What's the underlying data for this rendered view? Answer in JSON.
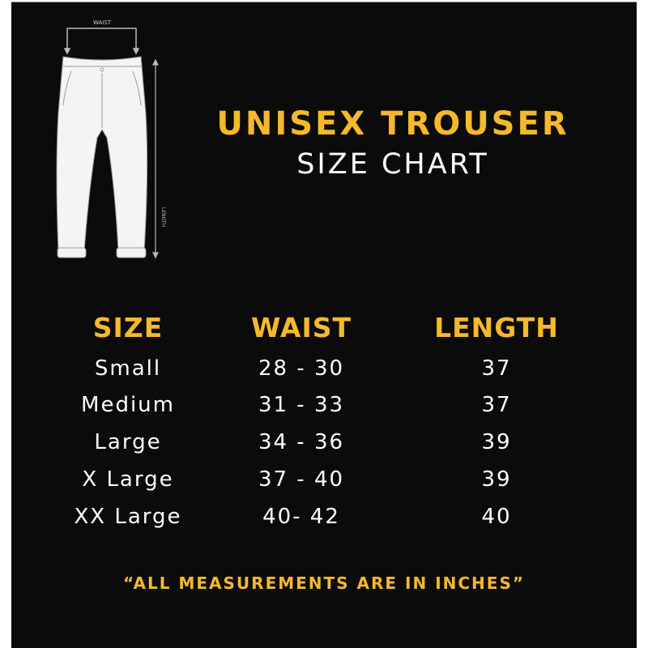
{
  "title": "UNISEX TROUSER",
  "subtitle": "SIZE CHART",
  "diagram": {
    "waist_label": "WAIST",
    "length_label": "LENGTH"
  },
  "colors": {
    "accent": "#f6b92b",
    "background": "#0b0b0b",
    "text": "#ffffff"
  },
  "table": {
    "headers": [
      "SIZE",
      "WAIST",
      "LENGTH"
    ],
    "rows": [
      [
        "Small",
        "28 - 30",
        "37"
      ],
      [
        "Medium",
        "31 - 33",
        "37"
      ],
      [
        "Large",
        "34 - 36",
        "39"
      ],
      [
        "X Large",
        "37 - 40",
        "39"
      ],
      [
        "XX Large",
        "40- 42",
        "40"
      ]
    ]
  },
  "footer": "“ALL MEASUREMENTS ARE IN INCHES”"
}
